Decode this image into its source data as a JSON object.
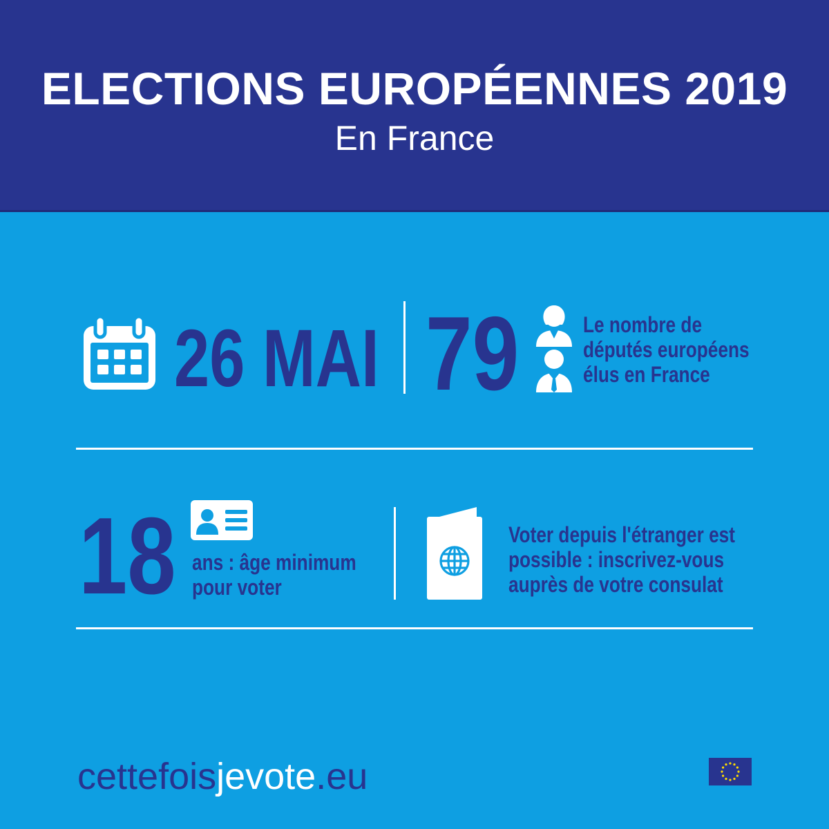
{
  "header": {
    "title": "ELECTIONS EUROPÉENNES 2019",
    "subtitle": "En France"
  },
  "row1": {
    "date": "26 MAI",
    "deputies_count": "79",
    "deputies_text": [
      "Le nombre de",
      "députés européens",
      "élus en France"
    ]
  },
  "row2": {
    "min_age": "18",
    "age_text": [
      "ans : âge minimum",
      "pour voter"
    ],
    "abroad_text": [
      "Voter depuis l'étranger est",
      "possible : inscrivez-vous",
      "auprès de votre consulat"
    ]
  },
  "footer": {
    "site_part1": "cettefois",
    "site_part2": "jevote",
    "site_part3": ".eu"
  },
  "icons": [
    "calendar-icon",
    "woman-icon",
    "man-icon",
    "id-card-icon",
    "passport-icon",
    "eu-flag-icon"
  ],
  "colors": {
    "header_bg": "#28348f",
    "body_bg": "#0e9fe2",
    "accent_text": "#28348f",
    "white": "#ffffff",
    "eu_star": "#ffdd00"
  }
}
